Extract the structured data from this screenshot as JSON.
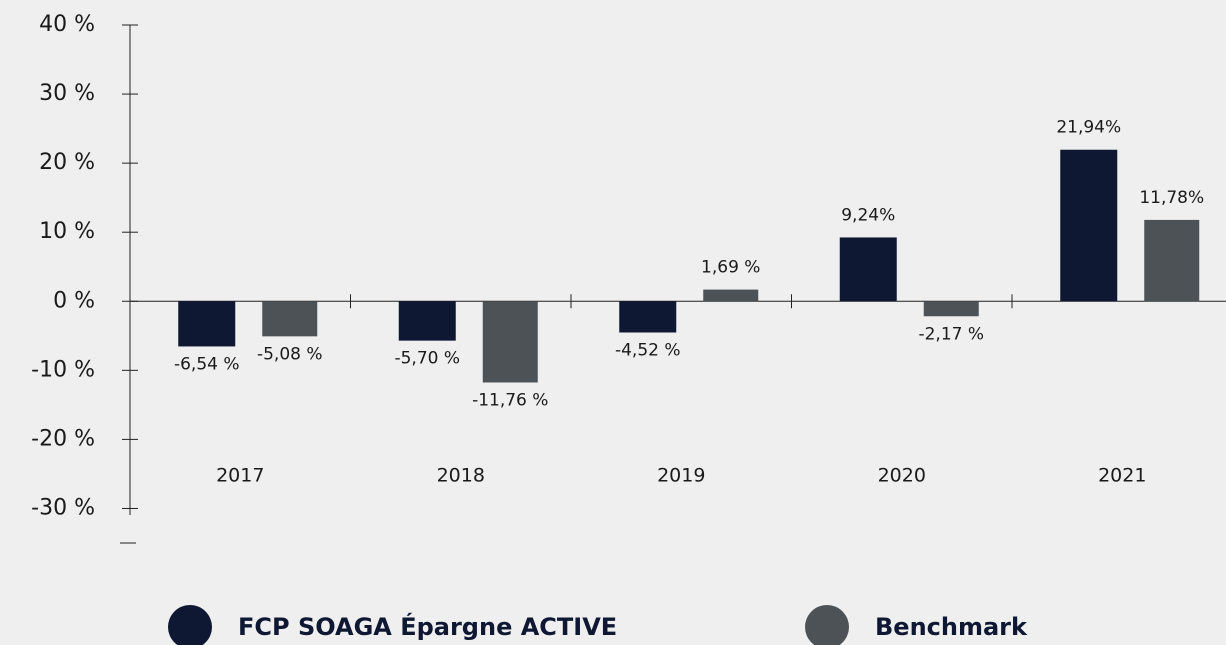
{
  "chart_data": {
    "type": "bar",
    "categories": [
      "2017",
      "2018",
      "2019",
      "2020",
      "2021"
    ],
    "series": [
      {
        "name": "FCP SOAGA Épargne ACTIVE",
        "color": "#0f1833",
        "values": [
          -6.54,
          -5.7,
          -4.52,
          9.24,
          21.94
        ],
        "value_labels": [
          "-6,54 %",
          "-5,70 %",
          "-4,52 %",
          "9,24%",
          "21,94%"
        ]
      },
      {
        "name": "Benchmark",
        "color": "#4d5257",
        "values": [
          -5.08,
          -11.76,
          1.69,
          -2.17,
          11.78
        ],
        "value_labels": [
          "-5,08 %",
          "-11,76 %",
          "1,69 %",
          "-2,17 %",
          "11,78%"
        ]
      }
    ],
    "ylim": [
      -35,
      40
    ],
    "yticks": [
      {
        "value": 40,
        "label": "40 %"
      },
      {
        "value": 30,
        "label": "30 %"
      },
      {
        "value": 20,
        "label": "20 %"
      },
      {
        "value": 10,
        "label": "10 %"
      },
      {
        "value": 0,
        "label": "0 %"
      },
      {
        "value": -10,
        "label": "-10 %"
      },
      {
        "value": -20,
        "label": "-20 %"
      },
      {
        "value": -30,
        "label": "-30 %"
      }
    ],
    "legend": "bottom",
    "grid": false
  }
}
